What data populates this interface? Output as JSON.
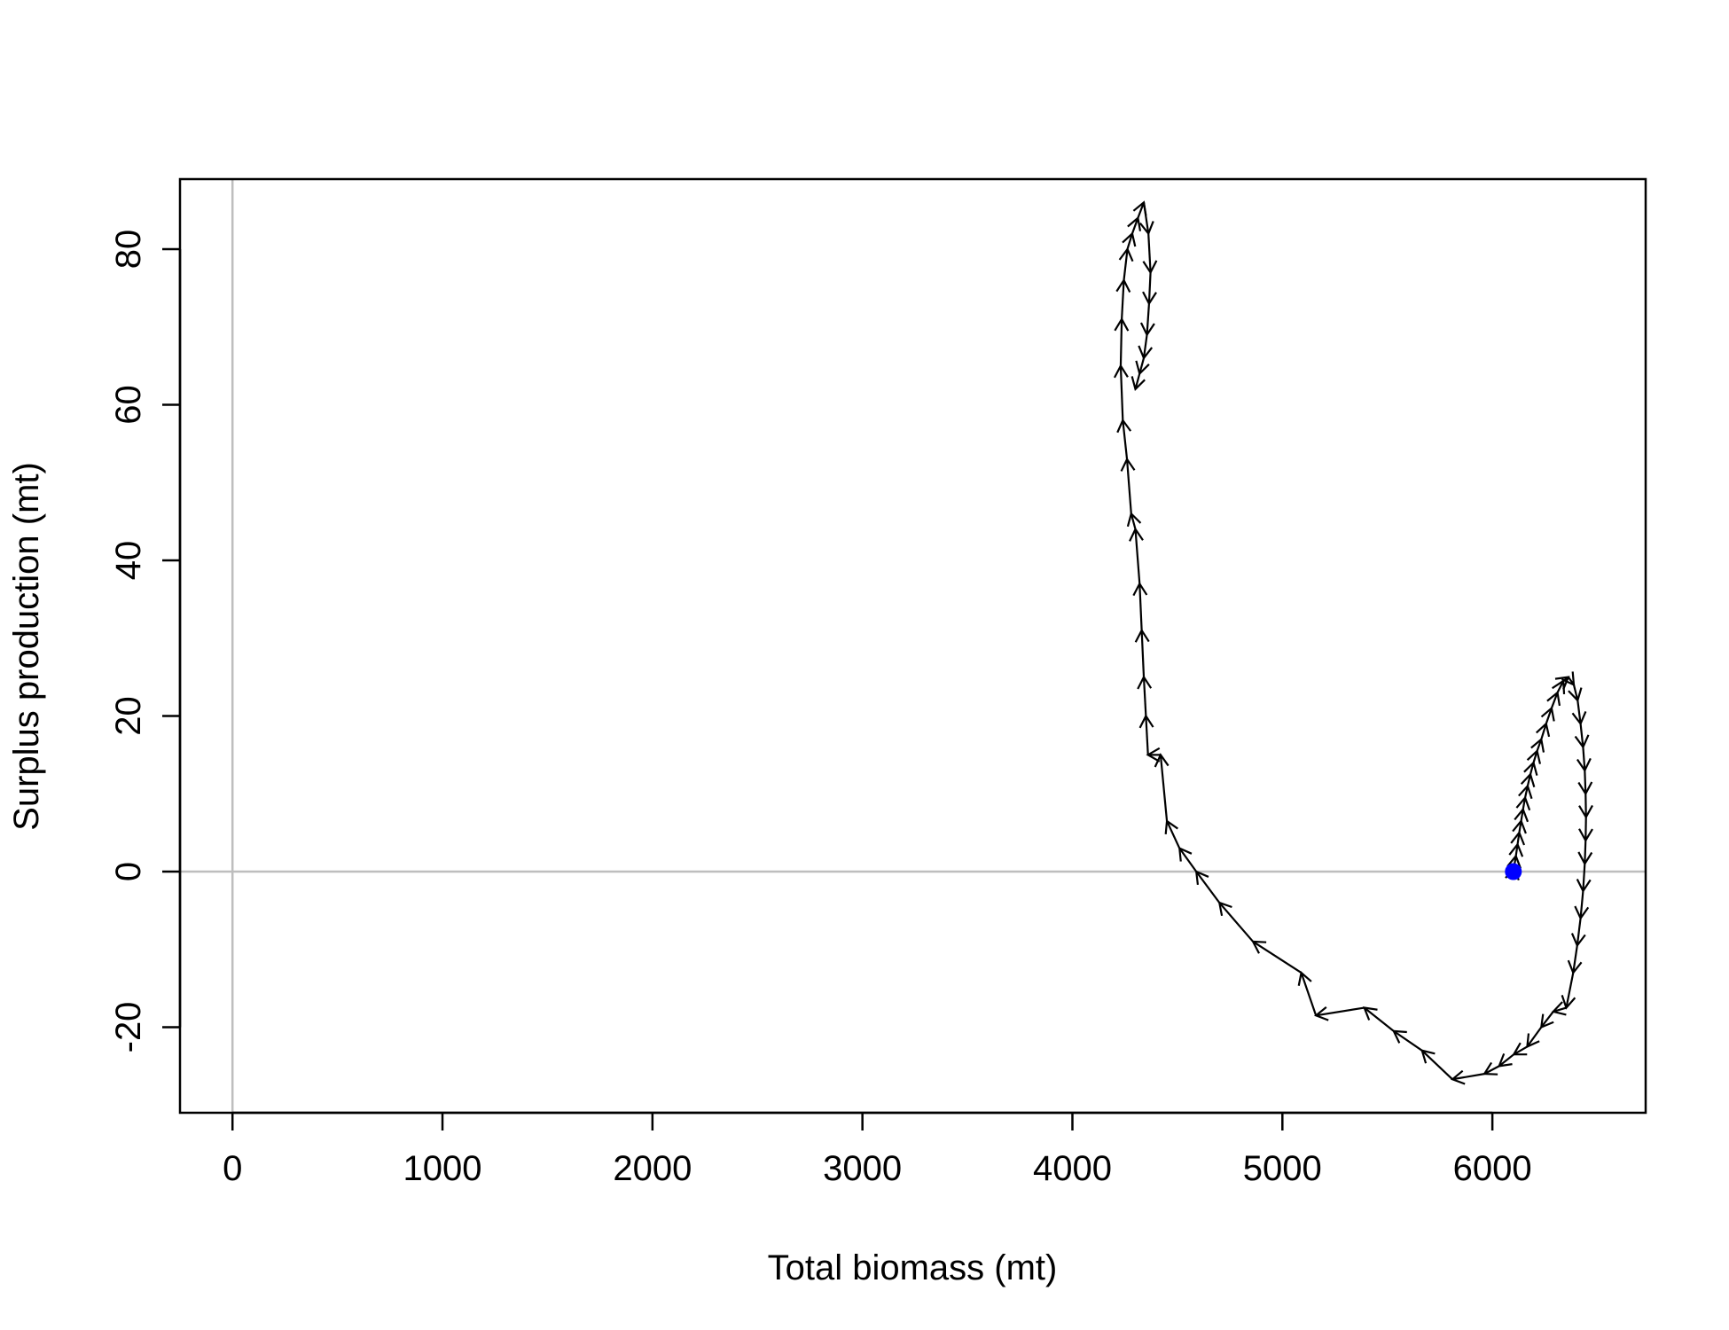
{
  "chart_data": {
    "type": "line",
    "title": "",
    "xlabel": "Total biomass (mt)",
    "ylabel": "Surplus production (mt)",
    "xlim": [
      -250,
      6730
    ],
    "ylim": [
      -31,
      89
    ],
    "xticks": [
      0,
      1000,
      2000,
      3000,
      4000,
      5000,
      6000
    ],
    "yticks": [
      -20,
      0,
      20,
      40,
      60,
      80
    ],
    "xtick_labels": [
      "0",
      "1000",
      "2000",
      "3000",
      "4000",
      "5000",
      "6000"
    ],
    "ytick_labels": [
      "-20",
      "0",
      "20",
      "40",
      "60",
      "80"
    ],
    "reference_lines": {
      "x": 0,
      "y": 0,
      "color": "#bebebe"
    },
    "line_color": "#000000",
    "end_point_color": "#0000ff",
    "series": [
      {
        "x": [
          6100,
          6103,
          6106,
          6112,
          6120,
          6128,
          6137,
          6146,
          6156,
          6168,
          6181,
          6196,
          6213,
          6233,
          6256,
          6282,
          6310,
          6338,
          6362,
          6388,
          6406,
          6420,
          6432,
          6440,
          6444,
          6446,
          6444,
          6440,
          6432,
          6420,
          6404,
          6385,
          6352,
          6290,
          6233,
          6166,
          6102,
          6032,
          5962,
          5810,
          5665,
          5530,
          5390,
          5160,
          5090,
          4860,
          4700,
          4590,
          4510,
          4450,
          4420,
          4360,
          4350,
          4340,
          4330,
          4320,
          4300,
          4280,
          4260,
          4240,
          4230,
          4235,
          4245,
          4262,
          4285,
          4312,
          4340,
          4362,
          4372,
          4365,
          4355,
          4340,
          4320,
          4300
        ],
        "y": [
          0,
          0.5,
          1,
          2,
          3.5,
          5,
          6.5,
          8,
          9.5,
          11,
          12.5,
          14,
          15.5,
          17,
          19,
          21,
          23,
          24.5,
          25,
          24,
          22,
          19,
          16,
          13,
          10,
          7,
          4,
          1,
          -2.5,
          -6,
          -9.5,
          -13,
          -17.5,
          -18,
          -20,
          -22.5,
          -23.5,
          -25,
          -26,
          -26.7,
          -23,
          -20.5,
          -17.5,
          -18.5,
          -13,
          -9,
          -4,
          0,
          3,
          6.5,
          15,
          15,
          20,
          25,
          31,
          37,
          44,
          46,
          53,
          58,
          65,
          71,
          76,
          80,
          82,
          84,
          86,
          82,
          77,
          73,
          69,
          66,
          64,
          62
        ]
      }
    ]
  }
}
